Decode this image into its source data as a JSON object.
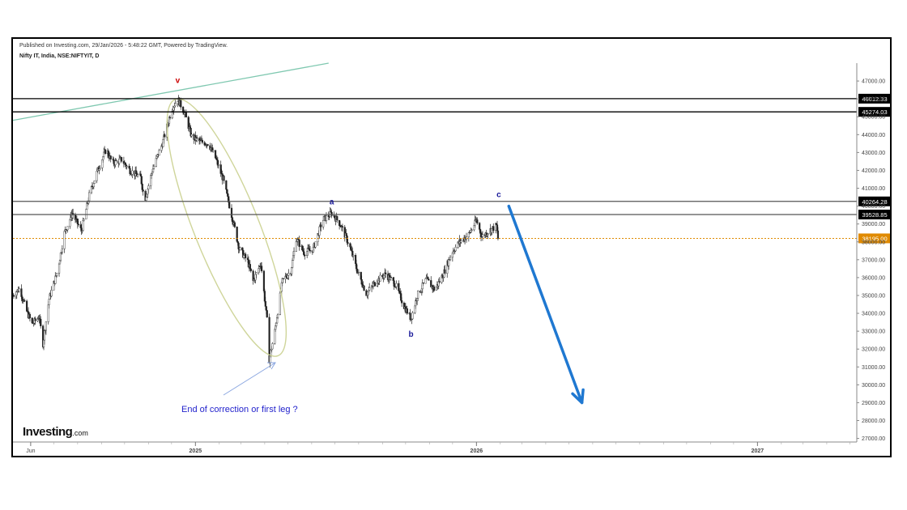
{
  "header": {
    "published": "Published on Investing.com, 29/Jan/2026 - 5:48:22 GMT, Powered by TradingView.",
    "symbol": "Nifty IT, India, NSE:NIFTYIT, D"
  },
  "logo": {
    "main": "Investing",
    "suffix": ".com"
  },
  "annotation": "End of correction or first leg ?",
  "chart_data": {
    "type": "candlestick",
    "ylim": [
      26800,
      48000
    ],
    "y_ticks": [
      27000,
      28000,
      29000,
      30000,
      31000,
      32000,
      33000,
      34000,
      35000,
      36000,
      37000,
      38000,
      39000,
      40000,
      41000,
      42000,
      43000,
      44000,
      45000,
      46000,
      47000
    ],
    "y_tick_labels": [
      "27000.00",
      "28000.00",
      "29000.00",
      "30000.00",
      "31000.00",
      "32000.00",
      "33000.00",
      "34000.00",
      "35000.00",
      "36000.00",
      "37000.00",
      "38000.00",
      "39000.00",
      "40000.00",
      "41000.00",
      "42000.00",
      "43000.00",
      "44000.00",
      "45000.00",
      "46000.00",
      "47000.00"
    ],
    "x_tick_labels": [
      "Jun",
      "2025",
      "2026",
      "2027"
    ],
    "x_tick_dates": [
      "2024-06-01",
      "2025-01-01",
      "2026-01-01",
      "2027-01-01"
    ],
    "x_range": [
      "2024-05-09",
      "2027-05-10"
    ],
    "price_path": [
      [
        "2024-05-09",
        35000
      ],
      [
        "2024-05-18",
        35400
      ],
      [
        "2024-05-26",
        34200
      ],
      [
        "2024-06-03",
        33400
      ],
      [
        "2024-06-12",
        33800
      ],
      [
        "2024-06-17",
        32300
      ],
      [
        "2024-06-25",
        34800
      ],
      [
        "2024-07-06",
        36400
      ],
      [
        "2024-07-15",
        38500
      ],
      [
        "2024-07-25",
        39600
      ],
      [
        "2024-08-06",
        38600
      ],
      [
        "2024-08-16",
        40600
      ],
      [
        "2024-08-27",
        42000
      ],
      [
        "2024-09-07",
        43200
      ],
      [
        "2024-09-15",
        42400
      ],
      [
        "2024-09-27",
        42600
      ],
      [
        "2024-10-08",
        42000
      ],
      [
        "2024-10-22",
        41600
      ],
      [
        "2024-10-27",
        40300
      ],
      [
        "2024-11-06",
        42000
      ],
      [
        "2024-11-19",
        43500
      ],
      [
        "2024-12-01",
        45400
      ],
      [
        "2024-12-09",
        46000
      ],
      [
        "2024-12-18",
        45200
      ],
      [
        "2024-12-27",
        43900
      ],
      [
        "2025-01-07",
        43600
      ],
      [
        "2025-01-18",
        43500
      ],
      [
        "2025-01-27",
        42700
      ],
      [
        "2025-02-06",
        41500
      ],
      [
        "2025-02-17",
        39500
      ],
      [
        "2025-02-27",
        37600
      ],
      [
        "2025-03-10",
        36900
      ],
      [
        "2025-03-17",
        35800
      ],
      [
        "2025-03-27",
        36800
      ],
      [
        "2025-04-04",
        33600
      ],
      [
        "2025-04-07",
        31400
      ],
      [
        "2025-04-14",
        33000
      ],
      [
        "2025-04-24",
        35800
      ],
      [
        "2025-05-05",
        36400
      ],
      [
        "2025-05-12",
        38200
      ],
      [
        "2025-05-22",
        37400
      ],
      [
        "2025-06-03",
        37600
      ],
      [
        "2025-06-15",
        39200
      ],
      [
        "2025-06-27",
        39600
      ],
      [
        "2025-07-08",
        39000
      ],
      [
        "2025-07-20",
        37800
      ],
      [
        "2025-07-30",
        36400
      ],
      [
        "2025-08-11",
        35100
      ],
      [
        "2025-08-24",
        35800
      ],
      [
        "2025-09-05",
        36200
      ],
      [
        "2025-09-18",
        35600
      ],
      [
        "2025-09-29",
        34400
      ],
      [
        "2025-10-08",
        33700
      ],
      [
        "2025-10-16",
        35000
      ],
      [
        "2025-10-28",
        35900
      ],
      [
        "2025-11-08",
        35300
      ],
      [
        "2025-11-19",
        36200
      ],
      [
        "2025-11-30",
        37400
      ],
      [
        "2025-12-10",
        38000
      ],
      [
        "2025-12-22",
        38400
      ],
      [
        "2026-01-01",
        39200
      ],
      [
        "2026-01-08",
        38300
      ],
      [
        "2026-01-17",
        38600
      ],
      [
        "2026-01-27",
        38900
      ],
      [
        "2026-01-29",
        38195
      ]
    ],
    "price_levels": [
      {
        "value": 46012.33,
        "label": "46012.33",
        "color": "#000000"
      },
      {
        "value": 45274.03,
        "label": "45274.03",
        "color": "#000000"
      },
      {
        "value": 40264.28,
        "label": "40264.28",
        "color": "#555555"
      },
      {
        "value": 39528.85,
        "label": "39528.85",
        "color": "#555555"
      },
      {
        "value": 38195.0,
        "label": "38195.00",
        "color": "#e08a00",
        "dashed": true
      }
    ],
    "trendline": {
      "color": "#7fc8b0",
      "from": [
        "2024-05-09",
        44800
      ],
      "to": [
        "2025-06-23",
        48000
      ]
    },
    "ellipse": {
      "color": "#cfd59a"
    },
    "wave_labels": [
      {
        "text": "v",
        "date": "2024-12-09",
        "price": 46900,
        "color": "#cc0000"
      },
      {
        "text": "a",
        "date": "2025-06-27",
        "price": 40100,
        "color": "#1a1a9a"
      },
      {
        "text": "b",
        "date": "2025-10-08",
        "price": 32700,
        "color": "#1a1a9a"
      },
      {
        "text": "c",
        "date": "2026-01-30",
        "price": 40500,
        "color": "#1a1a9a"
      }
    ],
    "projection_arrow": {
      "color": "#1f78d1",
      "from": [
        "2026-02-12",
        40000
      ],
      "to": [
        "2026-05-18",
        29000
      ]
    },
    "annotation_arrow_color": "#8aa6e0"
  }
}
